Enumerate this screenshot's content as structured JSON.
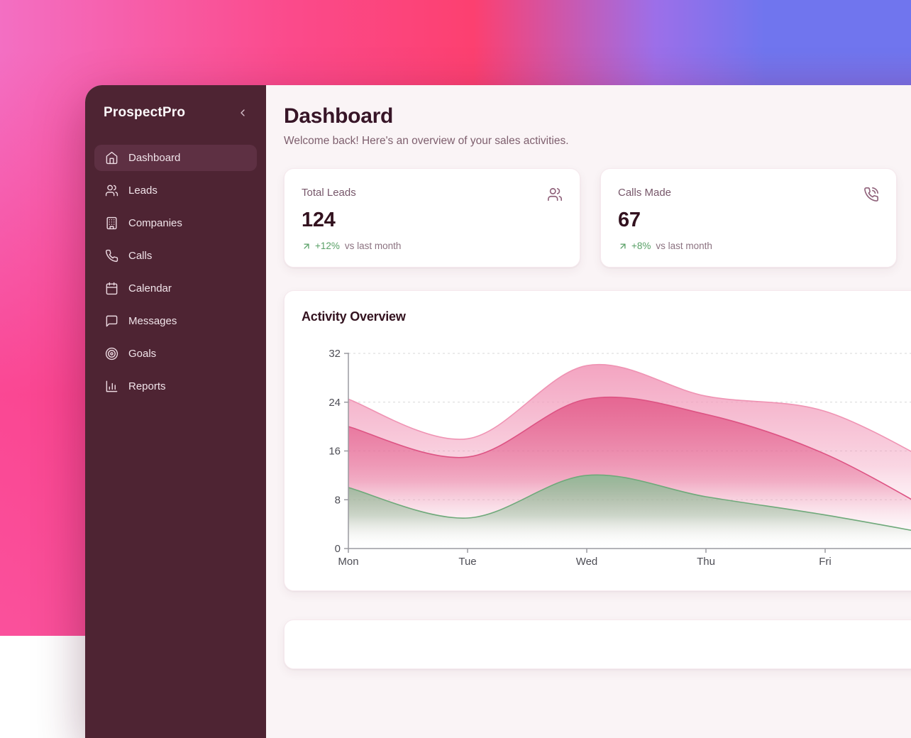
{
  "backdrop": {
    "gradient_left": "#f36fc3",
    "gradient_mid": "#fc4070",
    "gradient_right": "#7075ee",
    "gradient_bottom_left": "#fb4a8b"
  },
  "sidebar": {
    "logo": "ProspectPro",
    "collapse_icon": "chevron-left",
    "background": "#4e2433",
    "active_background": "#5e3043",
    "items": [
      {
        "label": "Dashboard",
        "icon": "home",
        "active": true
      },
      {
        "label": "Leads",
        "icon": "users",
        "active": false
      },
      {
        "label": "Companies",
        "icon": "building",
        "active": false
      },
      {
        "label": "Calls",
        "icon": "phone",
        "active": false
      },
      {
        "label": "Calendar",
        "icon": "calendar",
        "active": false
      },
      {
        "label": "Messages",
        "icon": "message-square",
        "active": false
      },
      {
        "label": "Goals",
        "icon": "target",
        "active": false
      },
      {
        "label": "Reports",
        "icon": "bar-chart",
        "active": false
      }
    ]
  },
  "header": {
    "title": "Dashboard",
    "subtitle": "Welcome back! Here's an overview of your sales activities."
  },
  "stats": [
    {
      "label": "Total Leads",
      "value": "124",
      "icon": "users",
      "trend_icon": "arrow-up-right",
      "trend_pct": "+12%",
      "trend_suffix": "vs last month",
      "trend_color": "#58a066"
    },
    {
      "label": "Calls Made",
      "value": "67",
      "icon": "phone-call",
      "trend_icon": "arrow-up-right",
      "trend_pct": "+8%",
      "trend_suffix": "vs last month",
      "trend_color": "#58a066"
    }
  ],
  "chart_card": {
    "title": "Activity Overview"
  },
  "chart_data": {
    "type": "area",
    "title": "Activity Overview",
    "categories": [
      "Mon",
      "Tue",
      "Wed",
      "Thu",
      "Fri"
    ],
    "series": [
      {
        "name": "outer-pink-band",
        "stroke": "#ef93b3",
        "fill": "#f29dbc",
        "values": [
          24.5,
          18,
          30,
          25,
          22.5
        ]
      },
      {
        "name": "inner-pink-band",
        "stroke": "#dd5383",
        "fill": "#e4618e",
        "values": [
          20,
          15,
          24.5,
          22,
          15.5
        ]
      },
      {
        "name": "green-band",
        "stroke": "#6fa97a",
        "fill": "#8cba94",
        "values": [
          10,
          5,
          12,
          8.5,
          5.5
        ]
      }
    ],
    "ylim": [
      0,
      32
    ],
    "yticks": [
      0,
      8,
      16,
      24,
      32
    ],
    "grid": "dashed-horizontal",
    "legend": "none-visible",
    "clipped_right": true,
    "edge_continuation_values": [
      13,
      5,
      2
    ],
    "axis_color": "#9a9aa0",
    "grid_color": "#d7d7d7",
    "tick_label_color": "#4d4d55"
  }
}
